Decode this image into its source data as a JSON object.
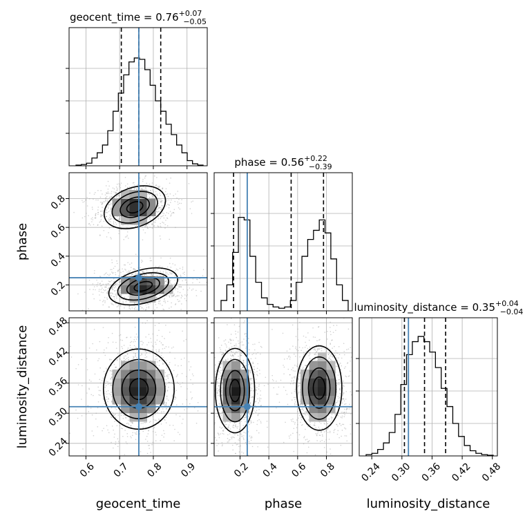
{
  "chart_data": {
    "type": "corner",
    "parameters": [
      {
        "name": "geocent_time",
        "range": [
          0.55,
          0.96
        ],
        "ticks": [
          0.6,
          0.7,
          0.8,
          0.9
        ],
        "tick_labels": [
          "0.6",
          "0.7",
          "0.8",
          "0.9"
        ],
        "title_prefix": "geocent_time = 0.76",
        "title_plus": "+0.07",
        "title_minus": "−0.05",
        "quantiles": [
          0.705,
          0.757,
          0.822
        ],
        "truth": 0.757
      },
      {
        "name": "phase",
        "range": [
          0.02,
          0.98
        ],
        "ticks": [
          0.2,
          0.4,
          0.6,
          0.8
        ],
        "tick_labels": [
          "0.2",
          "0.4",
          "0.6",
          "0.8"
        ],
        "title_prefix": "phase = 0.56",
        "title_plus": "+0.22",
        "title_minus": "−0.39",
        "quantiles": [
          0.155,
          0.555,
          0.78
        ],
        "truth": 0.25
      },
      {
        "name": "luminosity_distance",
        "range": [
          0.215,
          0.49
        ],
        "ticks": [
          0.24,
          0.3,
          0.36,
          0.42,
          0.48
        ],
        "tick_labels": [
          "0.24",
          "0.30",
          "0.36",
          "0.42",
          "0.48"
        ],
        "title_prefix": "luminosity_distance = 0.35",
        "title_plus": "+0.04",
        "title_minus": "−0.04",
        "quantiles": [
          0.305,
          0.345,
          0.387
        ],
        "truth": 0.313
      }
    ],
    "histograms": [
      [
        0.005,
        0.01,
        0.02,
        0.06,
        0.1,
        0.16,
        0.27,
        0.42,
        0.56,
        0.7,
        0.8,
        0.83,
        0.82,
        0.74,
        0.62,
        0.5,
        0.42,
        0.32,
        0.24,
        0.16,
        0.1,
        0.04,
        0.015,
        0.005
      ],
      [
        0.08,
        0.2,
        0.45,
        0.72,
        0.7,
        0.42,
        0.22,
        0.1,
        0.05,
        0.03,
        0.02,
        0.03,
        0.08,
        0.22,
        0.42,
        0.55,
        0.62,
        0.7,
        0.6,
        0.4,
        0.2,
        0.08
      ],
      [
        0.01,
        0.02,
        0.05,
        0.1,
        0.18,
        0.32,
        0.55,
        0.78,
        0.88,
        0.92,
        0.88,
        0.8,
        0.68,
        0.52,
        0.38,
        0.25,
        0.15,
        0.08,
        0.04,
        0.02,
        0.01,
        0.005
      ]
    ],
    "blobs": [
      {
        "x": 0,
        "y": 1,
        "modes": [
          {
            "cx": 0.745,
            "cy": 0.74,
            "sx": 0.045,
            "sy": 0.065,
            "rot": 20,
            "w": 1
          },
          {
            "cx": 0.77,
            "cy": 0.19,
            "sx": 0.05,
            "sy": 0.055,
            "rot": 15,
            "w": 1
          }
        ]
      },
      {
        "x": 0,
        "y": 2,
        "modes": [
          {
            "cx": 0.757,
            "cy": 0.348,
            "sx": 0.05,
            "sy": 0.038,
            "rot": 0,
            "w": 1
          }
        ]
      },
      {
        "x": 1,
        "y": 2,
        "modes": [
          {
            "cx": 0.165,
            "cy": 0.345,
            "sx": 0.065,
            "sy": 0.04,
            "rot": 0,
            "w": 1
          },
          {
            "cx": 0.75,
            "cy": 0.35,
            "sx": 0.075,
            "sy": 0.04,
            "rot": 0,
            "w": 1
          }
        ]
      }
    ],
    "truth_color": "#4682b4",
    "grid": true
  }
}
